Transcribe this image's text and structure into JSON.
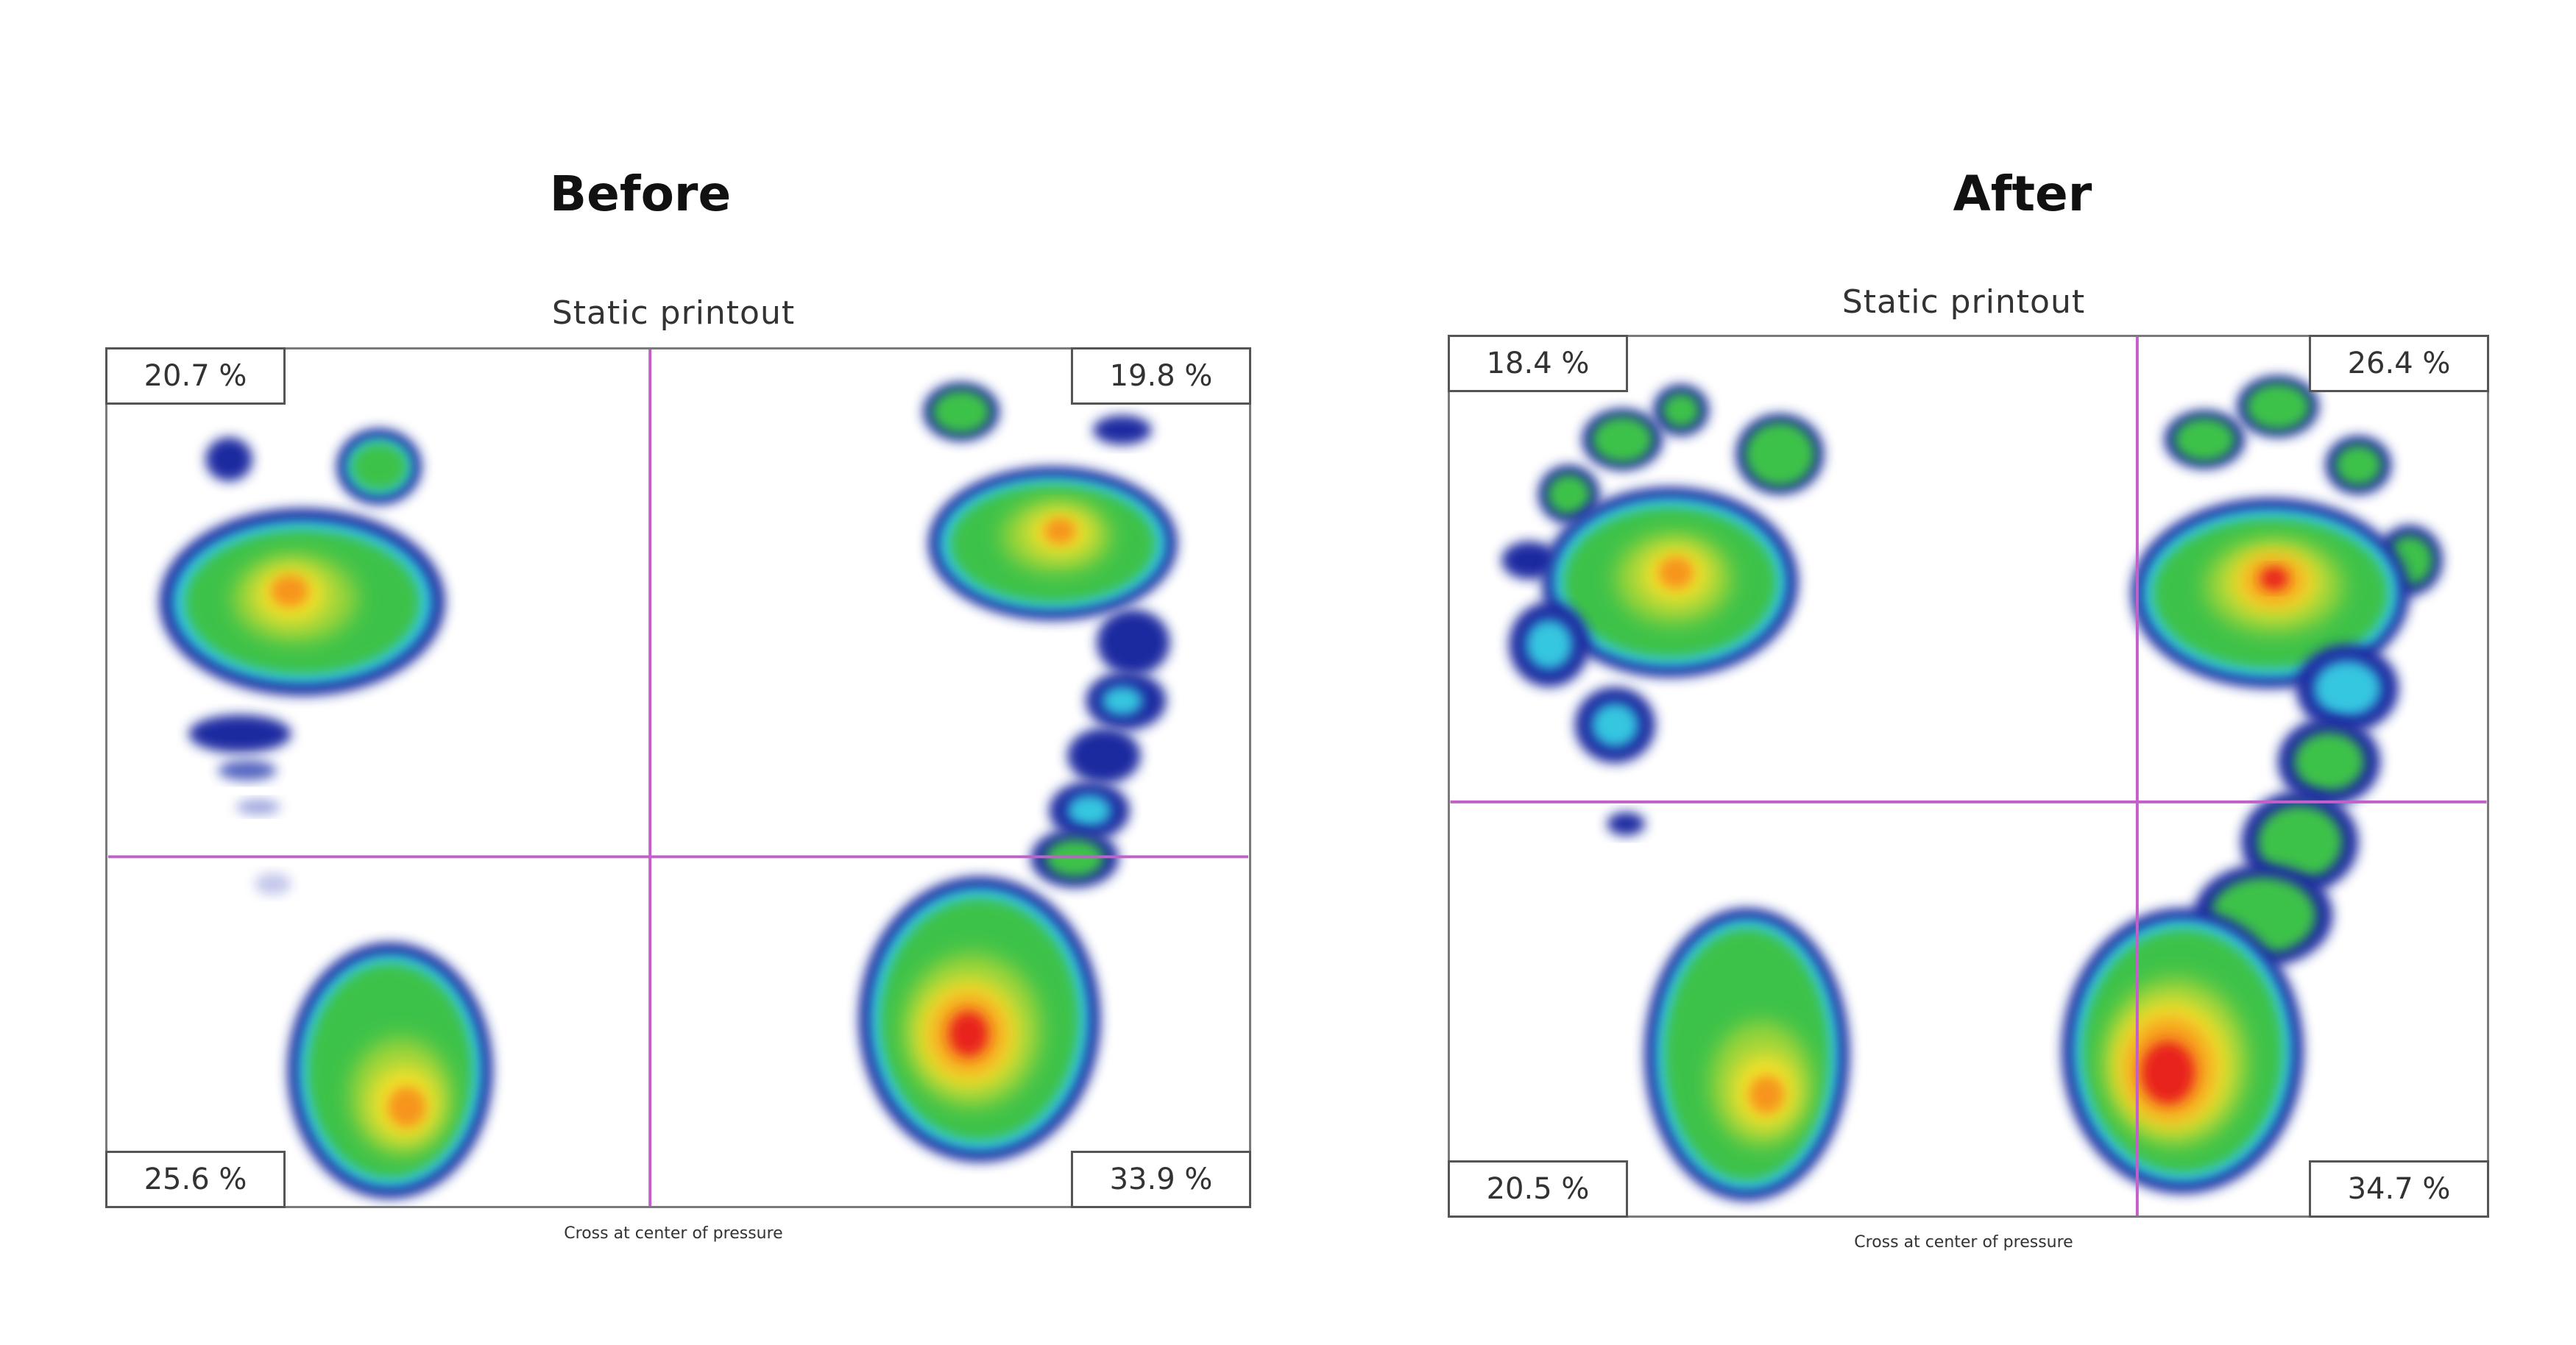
{
  "panels": [
    {
      "title": "Before",
      "subtitle": "Static printout",
      "footer": "Cross at center of pressure",
      "quadrants": {
        "top_left": "20.7 %",
        "top_right": "19.8 %",
        "bottom_left": "25.6 %",
        "bottom_right": "33.9 %"
      }
    },
    {
      "title": "After",
      "subtitle": "Static printout",
      "footer": "Cross at center of pressure",
      "quadrants": {
        "top_left": "18.4 %",
        "top_right": "26.4 %",
        "bottom_left": "20.5 %",
        "bottom_right": "34.7 %"
      }
    }
  ],
  "colors": {
    "crosshair": "#c060c8",
    "frame": "#7a7a7a",
    "pressure_scale": [
      "#1b2aa0",
      "#2a7bd8",
      "#35c6e0",
      "#3cc24a",
      "#9ad43a",
      "#f2e02a",
      "#f7941d",
      "#e8201a"
    ]
  }
}
